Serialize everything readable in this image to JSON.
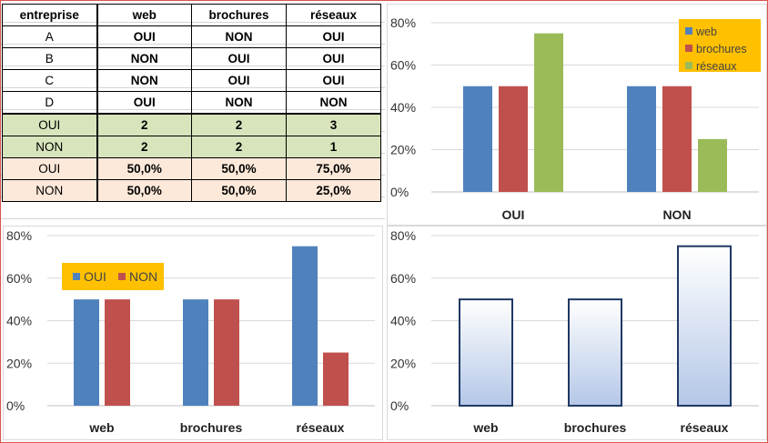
{
  "table": {
    "headers": [
      "entreprise",
      "web",
      "brochures",
      "réseaux"
    ],
    "rows": [
      [
        "A",
        "OUI",
        "NON",
        "OUI"
      ],
      [
        "B",
        "NON",
        "OUI",
        "OUI"
      ],
      [
        "C",
        "NON",
        "OUI",
        "OUI"
      ],
      [
        "D",
        "OUI",
        "NON",
        "NON"
      ]
    ],
    "counts": [
      [
        "OUI",
        "2",
        "2",
        "3"
      ],
      [
        "NON",
        "2",
        "2",
        "1"
      ]
    ],
    "percents": [
      [
        "OUI",
        "50,0%",
        "50,0%",
        "75,0%"
      ],
      [
        "NON",
        "50,0%",
        "50,0%",
        "25,0%"
      ]
    ],
    "colors": {
      "count_bg": "#d8e4bc",
      "percent_bg": "#fde9d9"
    }
  },
  "chart_data": [
    {
      "type": "bar",
      "title": "",
      "xlabel": "",
      "ylabel": "",
      "categories": [
        "OUI",
        "NON"
      ],
      "series": [
        {
          "name": "web",
          "values": [
            50,
            50
          ],
          "color": "#4f81bd"
        },
        {
          "name": "brochures",
          "values": [
            50,
            50
          ],
          "color": "#c0504d"
        },
        {
          "name": "réseaux",
          "values": [
            75,
            25
          ],
          "color": "#9bbb59"
        }
      ],
      "ylim": [
        0,
        80
      ],
      "yticks": [
        "0%",
        "20%",
        "40%",
        "60%",
        "80%"
      ],
      "ytick_values": [
        0,
        20,
        40,
        60,
        80
      ],
      "grid": true,
      "legend": "top-right",
      "legend_bg": "#ffc000"
    },
    {
      "type": "bar",
      "title": "",
      "xlabel": "",
      "ylabel": "",
      "categories": [
        "web",
        "brochures",
        "réseaux"
      ],
      "series": [
        {
          "name": "OUI",
          "values": [
            50,
            50,
            75
          ],
          "color": "#4f81bd"
        },
        {
          "name": "NON",
          "values": [
            50,
            50,
            25
          ],
          "color": "#c0504d"
        }
      ],
      "ylim": [
        0,
        80
      ],
      "yticks": [
        "0%",
        "20%",
        "40%",
        "60%",
        "80%"
      ],
      "ytick_values": [
        0,
        20,
        40,
        60,
        80
      ],
      "grid": true,
      "legend": "top-left",
      "legend_bg": "#ffc000"
    },
    {
      "type": "bar",
      "title": "",
      "xlabel": "",
      "ylabel": "",
      "categories": [
        "web",
        "brochures",
        "réseaux"
      ],
      "series": [
        {
          "values": [
            50,
            50,
            75
          ],
          "color": "#dce6f2",
          "stroke": "#1f3864"
        }
      ],
      "ylim": [
        0,
        80
      ],
      "yticks": [
        "0%",
        "20%",
        "40%",
        "60%",
        "80%"
      ],
      "ytick_values": [
        0,
        20,
        40,
        60,
        80
      ],
      "grid": true,
      "legend": "none"
    }
  ]
}
